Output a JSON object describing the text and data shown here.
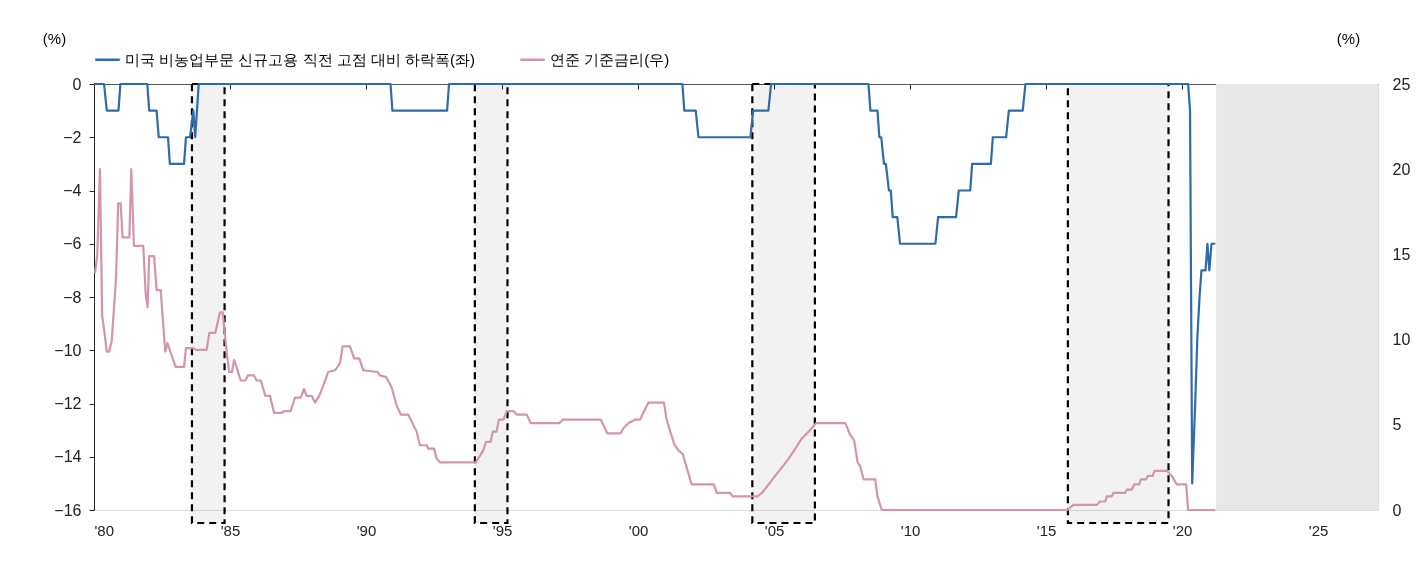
{
  "chart_data": {
    "type": "line",
    "xlim": [
      1980,
      2027.2
    ],
    "xticks": [
      {
        "value": 1980,
        "label": "'80"
      },
      {
        "value": 1985,
        "label": "'85"
      },
      {
        "value": 1990,
        "label": "'90"
      },
      {
        "value": 1995,
        "label": "'95"
      },
      {
        "value": 2000,
        "label": "'00"
      },
      {
        "value": 2005,
        "label": "'05"
      },
      {
        "value": 2010,
        "label": "'10"
      },
      {
        "value": 2015,
        "label": "'15"
      },
      {
        "value": 2020,
        "label": "'20"
      },
      {
        "value": 2025,
        "label": "'25"
      }
    ],
    "ylabel": "(%)",
    "y2label": "(%)",
    "ylim": [
      -16,
      0
    ],
    "yticks": [
      -16,
      -14,
      -12,
      -10,
      -8,
      -6,
      -4,
      -2,
      0
    ],
    "y2lim": [
      0,
      25
    ],
    "y2ticks": [
      0,
      5,
      10,
      15,
      20,
      25
    ],
    "legend": "top",
    "grid": false,
    "marker": "none",
    "line_style": "solid",
    "series": [
      {
        "name": "미국 비농업부문 신규고용 직전 고점 대비 하락폭(좌)",
        "color": "#2e6ca8",
        "axis": "y",
        "x": [
          1980,
          1980.37,
          1980.47,
          1980.9,
          1980.97,
          1981.96,
          1982.03,
          1982.3,
          1982.38,
          1982.72,
          1982.79,
          1983.31,
          1983.38,
          1983.53,
          1983.65,
          1983.72,
          1983.85,
          1990.9,
          1990.97,
          1992.98,
          1993.05,
          2001.63,
          2001.7,
          2002.12,
          2002.22,
          2004.13,
          2004.23,
          2004.79,
          2004.89,
          2008.47,
          2008.54,
          2008.8,
          2008.87,
          2008.94,
          2009.04,
          2009.11,
          2009.22,
          2009.29,
          2009.36,
          2009.53,
          2009.63,
          2010.93,
          2011.03,
          2011.69,
          2011.79,
          2012.21,
          2012.28,
          2012.97,
          2013.04,
          2013.53,
          2013.63,
          2014.14,
          2014.24,
          2020.22,
          2020.29,
          2020.37,
          2020.48,
          2020.56,
          2020.64,
          2020.71,
          2020.86,
          2020.93,
          2021.0,
          2021.08,
          2021.22
        ],
        "values": [
          0,
          0,
          -1,
          -1,
          0,
          0,
          -1,
          -1,
          -2,
          -2,
          -3,
          -3,
          -2,
          -2,
          -1,
          -2,
          0,
          0,
          -1,
          -1,
          0,
          0,
          -1,
          -1,
          -2,
          -2,
          -1,
          -1,
          0,
          0,
          -1,
          -1,
          -2,
          -2,
          -3,
          -3,
          -4,
          -4,
          -5,
          -5,
          -6,
          -6,
          -5,
          -5,
          -4,
          -4,
          -3,
          -3,
          -2,
          -2,
          -1,
          -1,
          0,
          0,
          -1,
          -15,
          -12,
          -9.5,
          -8,
          -7,
          -7,
          -6,
          -7,
          -6,
          -6
        ]
      },
      {
        "name": "연준 기준금리(우)",
        "color": "#d495a8",
        "axis": "y2",
        "x": [
          1980.04,
          1980.12,
          1980.22,
          1980.3,
          1980.37,
          1980.47,
          1980.56,
          1980.65,
          1980.81,
          1980.89,
          1980.98,
          1981.05,
          1981.3,
          1981.37,
          1981.47,
          1981.81,
          1981.9,
          1981.97,
          1982.03,
          1982.21,
          1982.3,
          1982.45,
          1982.62,
          1982.7,
          1983.0,
          1983.31,
          1983.38,
          1983.65,
          1983.75,
          1984.14,
          1984.24,
          1984.46,
          1984.63,
          1984.73,
          1984.88,
          1984.97,
          1985.07,
          1985.15,
          1985.24,
          1985.39,
          1985.56,
          1985.66,
          1985.88,
          1985.98,
          1986.13,
          1986.3,
          1986.47,
          1986.62,
          1986.9,
          1986.99,
          1987.23,
          1987.39,
          1987.6,
          1987.72,
          1987.82,
          1988.0,
          1988.12,
          1988.28,
          1988.43,
          1988.61,
          1988.86,
          1989.04,
          1989.14,
          1989.41,
          1989.56,
          1989.75,
          1989.9,
          1990.42,
          1990.51,
          1990.74,
          1990.94,
          1991.13,
          1991.28,
          1991.55,
          1991.86,
          1991.98,
          1992.23,
          1992.29,
          1992.5,
          1992.6,
          1992.72,
          1994.04,
          1994.31,
          1994.41,
          1994.58,
          1994.66,
          1994.8,
          1994.88,
          1995.05,
          1995.17,
          1995.42,
          1995.54,
          1995.91,
          1996.05,
          1997.11,
          1997.23,
          1998.63,
          1998.87,
          1999.36,
          1999.46,
          1999.65,
          1999.89,
          2000.07,
          2000.22,
          2000.38,
          2000.95,
          2001.05,
          2001.32,
          2001.48,
          2001.64,
          2001.97,
          2002.79,
          2002.89,
          2003.38,
          2003.48,
          2004.39,
          2004.55,
          2004.8,
          2005.04,
          2005.29,
          2005.53,
          2005.78,
          2006.02,
          2006.27,
          2006.55,
          2007.62,
          2007.8,
          2007.94,
          2008.07,
          2008.16,
          2008.29,
          2008.72,
          2008.8,
          2008.96,
          2015.78,
          2016.0,
          2016.86,
          2016.98,
          2017.18,
          2017.23,
          2017.41,
          2017.47,
          2017.9,
          2017.97,
          2018.15,
          2018.24,
          2018.42,
          2018.48,
          2018.68,
          2018.74,
          2018.92,
          2018.98,
          2019.44,
          2019.62,
          2019.8,
          2020.15,
          2020.22,
          2021.22
        ],
        "values": [
          13.9,
          15.0,
          20.0,
          11.4,
          10.6,
          9.3,
          9.3,
          9.9,
          13.6,
          18.0,
          18.0,
          16.0,
          16.0,
          20.0,
          15.5,
          15.5,
          12.7,
          11.9,
          14.9,
          14.9,
          12.9,
          12.9,
          9.3,
          9.8,
          8.4,
          8.4,
          9.5,
          9.5,
          9.4,
          9.4,
          10.4,
          10.4,
          11.6,
          11.6,
          9.2,
          8.1,
          8.1,
          8.8,
          8.4,
          7.6,
          7.6,
          7.9,
          7.9,
          7.6,
          7.6,
          6.7,
          6.7,
          5.7,
          5.7,
          5.8,
          5.8,
          6.6,
          6.6,
          7.1,
          6.7,
          6.7,
          6.3,
          6.7,
          7.3,
          8.1,
          8.2,
          8.6,
          9.6,
          9.6,
          8.9,
          8.9,
          8.2,
          8.1,
          7.9,
          7.8,
          7.2,
          6.1,
          5.6,
          5.6,
          4.6,
          3.8,
          3.8,
          3.6,
          3.6,
          3.0,
          2.8,
          2.8,
          3.5,
          4.0,
          4.0,
          4.6,
          4.6,
          5.3,
          5.3,
          5.8,
          5.8,
          5.6,
          5.6,
          5.1,
          5.1,
          5.3,
          5.3,
          4.5,
          4.5,
          4.8,
          5.1,
          5.3,
          5.3,
          5.8,
          6.3,
          6.3,
          5.3,
          3.9,
          3.5,
          3.3,
          1.5,
          1.5,
          1.0,
          1.0,
          0.8,
          0.8,
          1.0,
          1.5,
          2.0,
          2.5,
          3.0,
          3.6,
          4.2,
          4.6,
          5.1,
          5.1,
          4.4,
          4.1,
          2.8,
          2.6,
          1.8,
          1.8,
          0.8,
          0,
          0,
          0.3,
          0.3,
          0.5,
          0.5,
          0.8,
          0.8,
          1.0,
          1.0,
          1.2,
          1.2,
          1.5,
          1.5,
          1.8,
          1.8,
          2.0,
          2.0,
          2.3,
          2.3,
          2.0,
          1.5,
          1.5,
          0,
          0
        ]
      }
    ],
    "bands": [
      {
        "axis": "x",
        "from": 1983.6,
        "to": 1984.8,
        "color": "#000000"
      },
      {
        "axis": "x",
        "from": 1994.0,
        "to": 1995.2,
        "color": "#000000"
      },
      {
        "axis": "x",
        "from": 2004.2,
        "to": 2006.5,
        "color": "#000000"
      },
      {
        "axis": "x",
        "from": 2015.8,
        "to": 2019.5,
        "color": "#000000"
      },
      {
        "axis": "x",
        "from": 2021.25,
        "to": 2027.2,
        "color": "#e8e8e8"
      }
    ]
  }
}
